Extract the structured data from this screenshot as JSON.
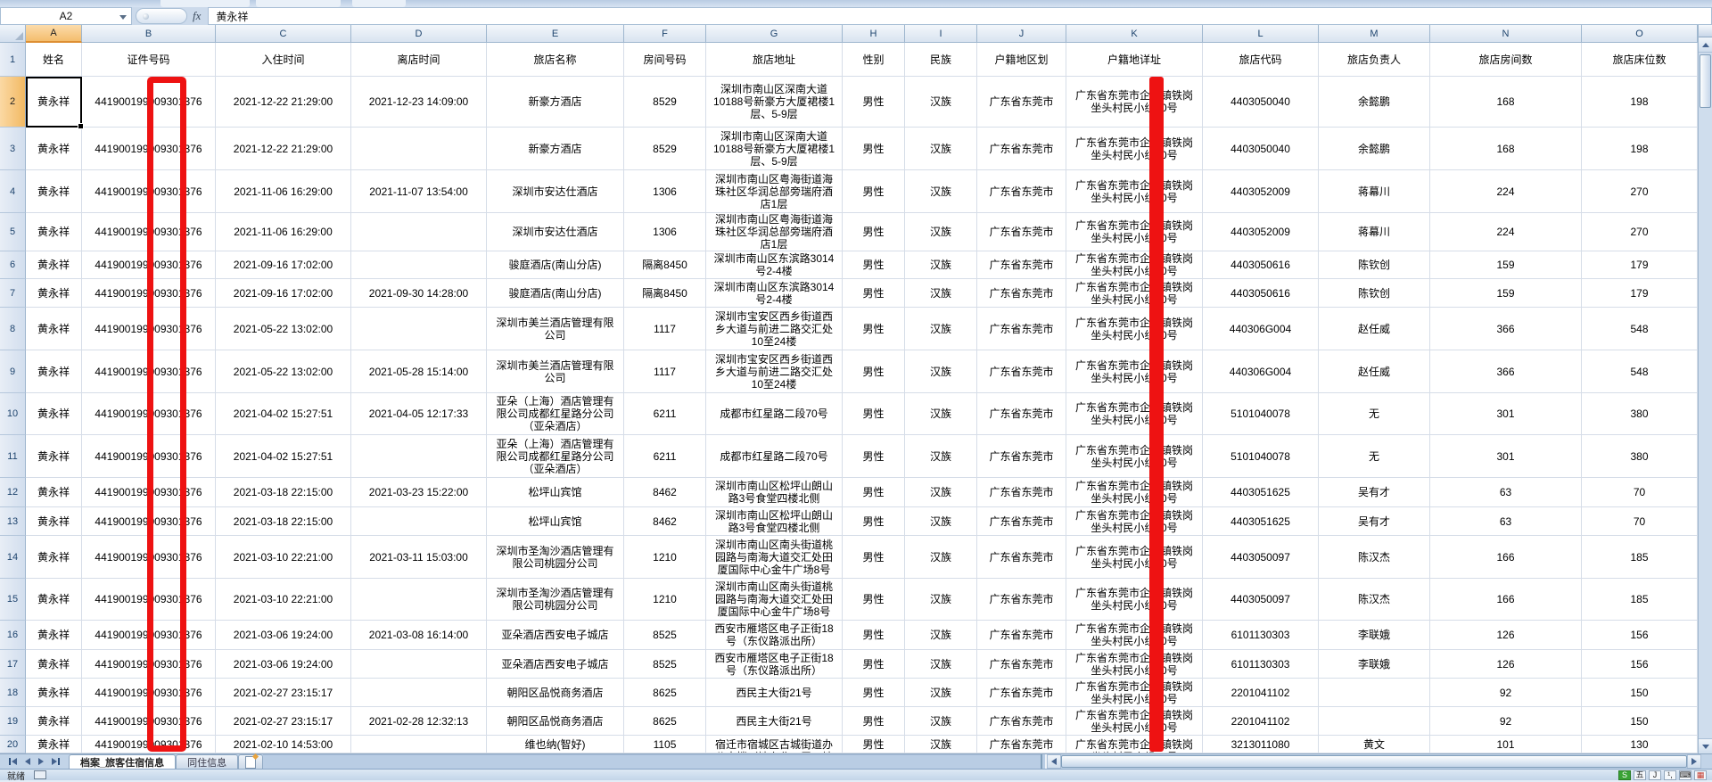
{
  "formula_bar": {
    "cell_reference": "A2",
    "fx_label": "fx",
    "value": "黄永祥"
  },
  "grid": {
    "column_letters": [
      "A",
      "B",
      "C",
      "D",
      "E",
      "F",
      "G",
      "H",
      "I",
      "J",
      "K",
      "L",
      "M",
      "N",
      "O"
    ],
    "header_labels": [
      "姓名",
      "证件号码",
      "入住时间",
      "离店时间",
      "旅店名称",
      "房间号码",
      "旅店地址",
      "性别",
      "民族",
      "户籍地区划",
      "户籍地详址",
      "旅店代码",
      "旅店负责人",
      "旅店房间数",
      "旅店床位数"
    ],
    "selected_cell": "A2",
    "selected_row": "2",
    "rows": [
      {
        "name": "黄永祥",
        "id": "441900199009301376",
        "checkin": "2021-12-22 21:29:00",
        "checkout": "2021-12-23 14:09:00",
        "hotel": "新豪方酒店",
        "room": "8529",
        "address": "深圳市南山区深南大道10188号新豪方大厦裙楼1层、5-9层",
        "gender": "男性",
        "ethnicity": "汉族",
        "region": "广东省东莞市",
        "detail": "广东省东莞市企石镇铁岗坐头村民小组10号",
        "code": "4403050040",
        "manager": "余懿鹏",
        "rooms": "168",
        "beds": "198"
      },
      {
        "name": "黄永祥",
        "id": "441900199009301376",
        "checkin": "2021-12-22 21:29:00",
        "checkout": "",
        "hotel": "新豪方酒店",
        "room": "8529",
        "address": "深圳市南山区深南大道10188号新豪方大厦裙楼1层、5-9层",
        "gender": "男性",
        "ethnicity": "汉族",
        "region": "广东省东莞市",
        "detail": "广东省东莞市企石镇铁岗坐头村民小组10号",
        "code": "4403050040",
        "manager": "余懿鹏",
        "rooms": "168",
        "beds": "198"
      },
      {
        "name": "黄永祥",
        "id": "441900199009301376",
        "checkin": "2021-11-06 16:29:00",
        "checkout": "2021-11-07 13:54:00",
        "hotel": "深圳市安达仕酒店",
        "room": "1306",
        "address": "深圳市南山区粤海街道海珠社区华润总部旁瑞府酒店1层",
        "gender": "男性",
        "ethnicity": "汉族",
        "region": "广东省东莞市",
        "detail": "广东省东莞市企石镇铁岗坐头村民小组10号",
        "code": "4403052009",
        "manager": "蒋幕川",
        "rooms": "224",
        "beds": "270"
      },
      {
        "name": "黄永祥",
        "id": "441900199009301376",
        "checkin": "2021-11-06 16:29:00",
        "checkout": "",
        "hotel": "深圳市安达仕酒店",
        "room": "1306",
        "address": "深圳市南山区粤海街道海珠社区华润总部旁瑞府酒店1层",
        "gender": "男性",
        "ethnicity": "汉族",
        "region": "广东省东莞市",
        "detail": "广东省东莞市企石镇铁岗坐头村民小组10号",
        "code": "4403052009",
        "manager": "蒋幕川",
        "rooms": "224",
        "beds": "270"
      },
      {
        "name": "黄永祥",
        "id": "441900199009301376",
        "checkin": "2021-09-16 17:02:00",
        "checkout": "",
        "hotel": "骏庭酒店(南山分店)",
        "room": "隔离8450",
        "address": "深圳市南山区东滨路3014号2-4楼",
        "gender": "男性",
        "ethnicity": "汉族",
        "region": "广东省东莞市",
        "detail": "广东省东莞市企石镇铁岗坐头村民小组10号",
        "code": "4403050616",
        "manager": "陈钦创",
        "rooms": "159",
        "beds": "179"
      },
      {
        "name": "黄永祥",
        "id": "441900199009301376",
        "checkin": "2021-09-16 17:02:00",
        "checkout": "2021-09-30 14:28:00",
        "hotel": "骏庭酒店(南山分店)",
        "room": "隔离8450",
        "address": "深圳市南山区东滨路3014号2-4楼",
        "gender": "男性",
        "ethnicity": "汉族",
        "region": "广东省东莞市",
        "detail": "广东省东莞市企石镇铁岗坐头村民小组10号",
        "code": "4403050616",
        "manager": "陈钦创",
        "rooms": "159",
        "beds": "179"
      },
      {
        "name": "黄永祥",
        "id": "441900199009301376",
        "checkin": "2021-05-22 13:02:00",
        "checkout": "",
        "hotel": "深圳市美兰酒店管理有限公司",
        "room": "1117",
        "address": "深圳市宝安区西乡街道西乡大道与前进二路交汇处10至24楼",
        "gender": "男性",
        "ethnicity": "汉族",
        "region": "广东省东莞市",
        "detail": "广东省东莞市企石镇铁岗坐头村民小组10号",
        "code": "440306G004",
        "manager": "赵任威",
        "rooms": "366",
        "beds": "548"
      },
      {
        "name": "黄永祥",
        "id": "441900199009301376",
        "checkin": "2021-05-22 13:02:00",
        "checkout": "2021-05-28 15:14:00",
        "hotel": "深圳市美兰酒店管理有限公司",
        "room": "1117",
        "address": "深圳市宝安区西乡街道西乡大道与前进二路交汇处10至24楼",
        "gender": "男性",
        "ethnicity": "汉族",
        "region": "广东省东莞市",
        "detail": "广东省东莞市企石镇铁岗坐头村民小组10号",
        "code": "440306G004",
        "manager": "赵任威",
        "rooms": "366",
        "beds": "548"
      },
      {
        "name": "黄永祥",
        "id": "441900199009301376",
        "checkin": "2021-04-02 15:27:51",
        "checkout": "2021-04-05 12:17:33",
        "hotel": "亚朵（上海）酒店管理有限公司成都红星路分公司（亚朵酒店）",
        "room": "6211",
        "address": "成都市红星路二段70号",
        "gender": "男性",
        "ethnicity": "汉族",
        "region": "广东省东莞市",
        "detail": "广东省东莞市企石镇铁岗坐头村民小组10号",
        "code": "5101040078",
        "manager": "无",
        "rooms": "301",
        "beds": "380"
      },
      {
        "name": "黄永祥",
        "id": "441900199009301376",
        "checkin": "2021-04-02 15:27:51",
        "checkout": "",
        "hotel": "亚朵（上海）酒店管理有限公司成都红星路分公司（亚朵酒店）",
        "room": "6211",
        "address": "成都市红星路二段70号",
        "gender": "男性",
        "ethnicity": "汉族",
        "region": "广东省东莞市",
        "detail": "广东省东莞市企石镇铁岗坐头村民小组10号",
        "code": "5101040078",
        "manager": "无",
        "rooms": "301",
        "beds": "380"
      },
      {
        "name": "黄永祥",
        "id": "441900199009301376",
        "checkin": "2021-03-18 22:15:00",
        "checkout": "2021-03-23 15:22:00",
        "hotel": "松坪山宾馆",
        "room": "8462",
        "address": "深圳市南山区松坪山朗山路3号食堂四楼北侧",
        "gender": "男性",
        "ethnicity": "汉族",
        "region": "广东省东莞市",
        "detail": "广东省东莞市企石镇铁岗坐头村民小组10号",
        "code": "4403051625",
        "manager": "吴有才",
        "rooms": "63",
        "beds": "70"
      },
      {
        "name": "黄永祥",
        "id": "441900199009301376",
        "checkin": "2021-03-18 22:15:00",
        "checkout": "",
        "hotel": "松坪山宾馆",
        "room": "8462",
        "address": "深圳市南山区松坪山朗山路3号食堂四楼北侧",
        "gender": "男性",
        "ethnicity": "汉族",
        "region": "广东省东莞市",
        "detail": "广东省东莞市企石镇铁岗坐头村民小组10号",
        "code": "4403051625",
        "manager": "吴有才",
        "rooms": "63",
        "beds": "70"
      },
      {
        "name": "黄永祥",
        "id": "441900199009301376",
        "checkin": "2021-03-10 22:21:00",
        "checkout": "2021-03-11 15:03:00",
        "hotel": "深圳市圣淘沙酒店管理有限公司桃园分公司",
        "room": "1210",
        "address": "深圳市南山区南头街道桃园路与南海大道交汇处田厦国际中心金牛广场8号",
        "gender": "男性",
        "ethnicity": "汉族",
        "region": "广东省东莞市",
        "detail": "广东省东莞市企石镇铁岗坐头村民小组10号",
        "code": "4403050097",
        "manager": "陈汉杰",
        "rooms": "166",
        "beds": "185"
      },
      {
        "name": "黄永祥",
        "id": "441900199009301376",
        "checkin": "2021-03-10 22:21:00",
        "checkout": "",
        "hotel": "深圳市圣淘沙酒店管理有限公司桃园分公司",
        "room": "1210",
        "address": "深圳市南山区南头街道桃园路与南海大道交汇处田厦国际中心金牛广场8号",
        "gender": "男性",
        "ethnicity": "汉族",
        "region": "广东省东莞市",
        "detail": "广东省东莞市企石镇铁岗坐头村民小组10号",
        "code": "4403050097",
        "manager": "陈汉杰",
        "rooms": "166",
        "beds": "185"
      },
      {
        "name": "黄永祥",
        "id": "441900199009301376",
        "checkin": "2021-03-06 19:24:00",
        "checkout": "2021-03-08 16:14:00",
        "hotel": "亚朵酒店西安电子城店",
        "room": "8525",
        "address": "西安市雁塔区电子正街18号（东仪路派出所）",
        "gender": "男性",
        "ethnicity": "汉族",
        "region": "广东省东莞市",
        "detail": "广东省东莞市企石镇铁岗坐头村民小组10号",
        "code": "6101130303",
        "manager": "李联娥",
        "rooms": "126",
        "beds": "156"
      },
      {
        "name": "黄永祥",
        "id": "441900199009301376",
        "checkin": "2021-03-06 19:24:00",
        "checkout": "",
        "hotel": "亚朵酒店西安电子城店",
        "room": "8525",
        "address": "西安市雁塔区电子正街18号（东仪路派出所）",
        "gender": "男性",
        "ethnicity": "汉族",
        "region": "广东省东莞市",
        "detail": "广东省东莞市企石镇铁岗坐头村民小组10号",
        "code": "6101130303",
        "manager": "李联娥",
        "rooms": "126",
        "beds": "156"
      },
      {
        "name": "黄永祥",
        "id": "441900199009301376",
        "checkin": "2021-02-27 23:15:17",
        "checkout": "",
        "hotel": "朝阳区品悦商务酒店",
        "room": "8625",
        "address": "西民主大街21号",
        "gender": "男性",
        "ethnicity": "汉族",
        "region": "广东省东莞市",
        "detail": "广东省东莞市企石镇铁岗坐头村民小组10号",
        "code": "2201041102",
        "manager": "",
        "rooms": "92",
        "beds": "150"
      },
      {
        "name": "黄永祥",
        "id": "441900199009301376",
        "checkin": "2021-02-27 23:15:17",
        "checkout": "2021-02-28 12:32:13",
        "hotel": "朝阳区品悦商务酒店",
        "room": "8625",
        "address": "西民主大街21号",
        "gender": "男性",
        "ethnicity": "汉族",
        "region": "广东省东莞市",
        "detail": "广东省东莞市企石镇铁岗坐头村民小组10号",
        "code": "2201041102",
        "manager": "",
        "rooms": "92",
        "beds": "150"
      },
      {
        "name": "黄永祥",
        "id": "441900199009301376",
        "checkin": "2021-02-10 14:53:00",
        "checkout": "",
        "hotel": "维也纳(智好)",
        "room": "1105",
        "address": "宿迁市宿城区古城街道办公大楼（地上北、层、地",
        "gender": "男性",
        "ethnicity": "汉族",
        "region": "广东省东莞市",
        "detail": "广东省东莞市企石镇铁岗坐头村民小组10号",
        "code": "3213011080",
        "manager": "黄文",
        "rooms": "101",
        "beds": "130"
      }
    ]
  },
  "sheet_tabs": {
    "tabs": [
      "档案_旅客住宿信息",
      "同住信息"
    ],
    "active_tab": "档案_旅客住宿信息"
  },
  "status_bar": {
    "ready_label": "就绪",
    "ime_icons": [
      {
        "name": "ime-logo-icon",
        "text": "S"
      },
      {
        "name": "wubi-icon",
        "text": "五"
      },
      {
        "name": "mode-icon",
        "text": "J"
      },
      {
        "name": "punct-icon",
        "text": "¹,"
      },
      {
        "name": "keyboard-icon",
        "text": "⌨"
      },
      {
        "name": "grid-icon",
        "text": "▦"
      }
    ]
  },
  "annotations": {
    "redaction_color": "#ee1212",
    "items": [
      {
        "name": "id-column-redaction-box",
        "column": "B"
      },
      {
        "name": "address-column-redaction-bar",
        "column": "K"
      }
    ]
  }
}
